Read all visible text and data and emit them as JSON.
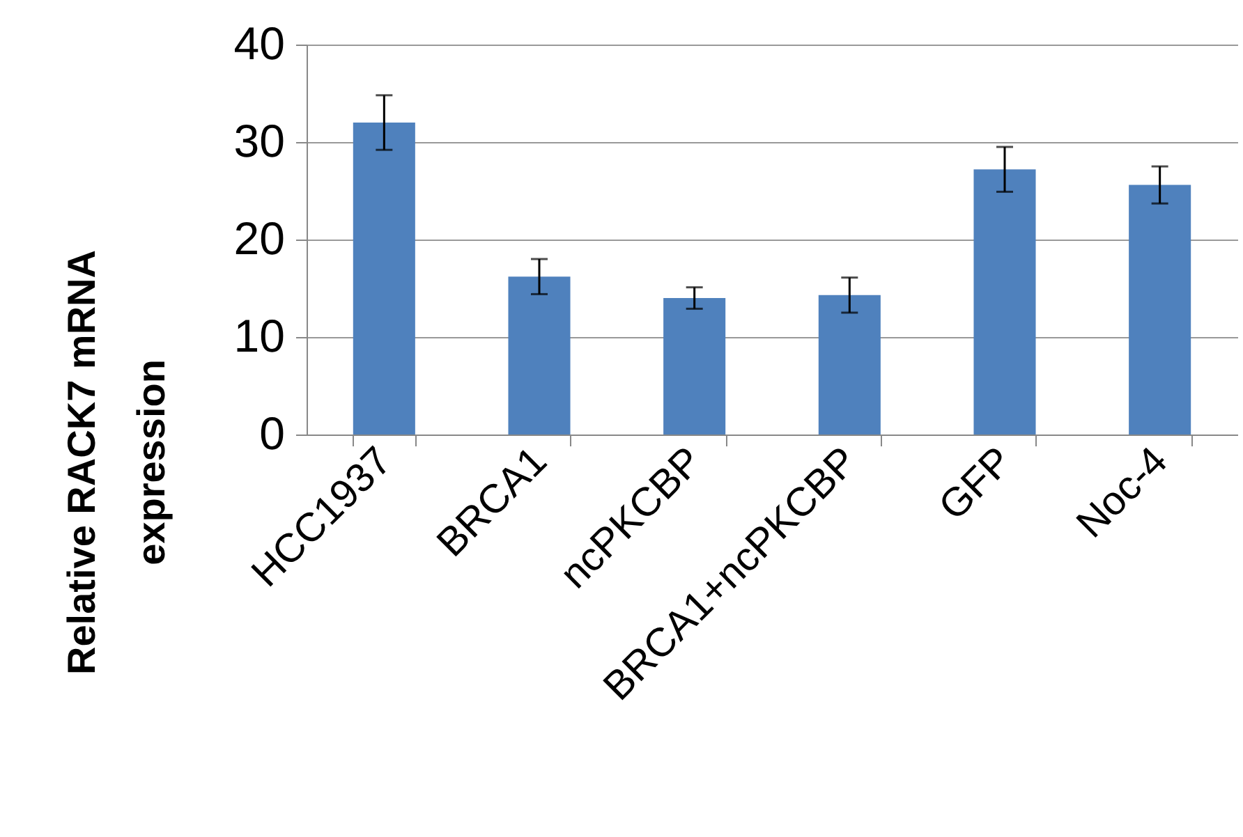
{
  "chart_data": {
    "type": "bar",
    "ylabel": "Relative RACK7 mRNA expression",
    "categories": [
      "HCC1937",
      "BRCA1",
      "ncPKCBP",
      "BRCA1+ncPKCBP",
      "GFP",
      "Noc-4"
    ],
    "values": [
      32.0,
      16.2,
      14.0,
      14.3,
      27.2,
      25.6
    ],
    "errors": [
      2.8,
      1.8,
      1.1,
      1.8,
      2.3,
      1.9
    ],
    "color": "#4f81bd",
    "ylim": [
      0,
      40
    ],
    "yticks": [
      0,
      10,
      20,
      30,
      40
    ],
    "grid": "y"
  }
}
